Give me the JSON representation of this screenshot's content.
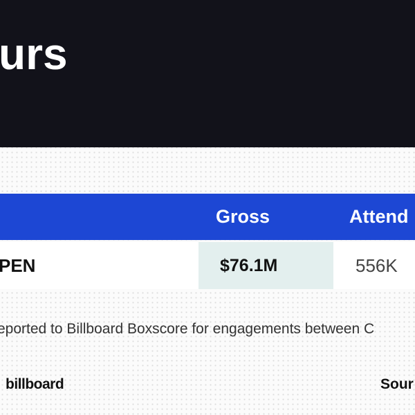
{
  "header": {
    "title": "urs"
  },
  "table": {
    "columns": [
      "Gross",
      "Attend"
    ],
    "rows": [
      [
        "PEN",
        "$76.1M",
        "556K"
      ]
    ]
  },
  "footnote": "eported to Billboard Boxscore for engagements between C",
  "footer": {
    "brand": "billboard",
    "source": "Sour"
  }
}
